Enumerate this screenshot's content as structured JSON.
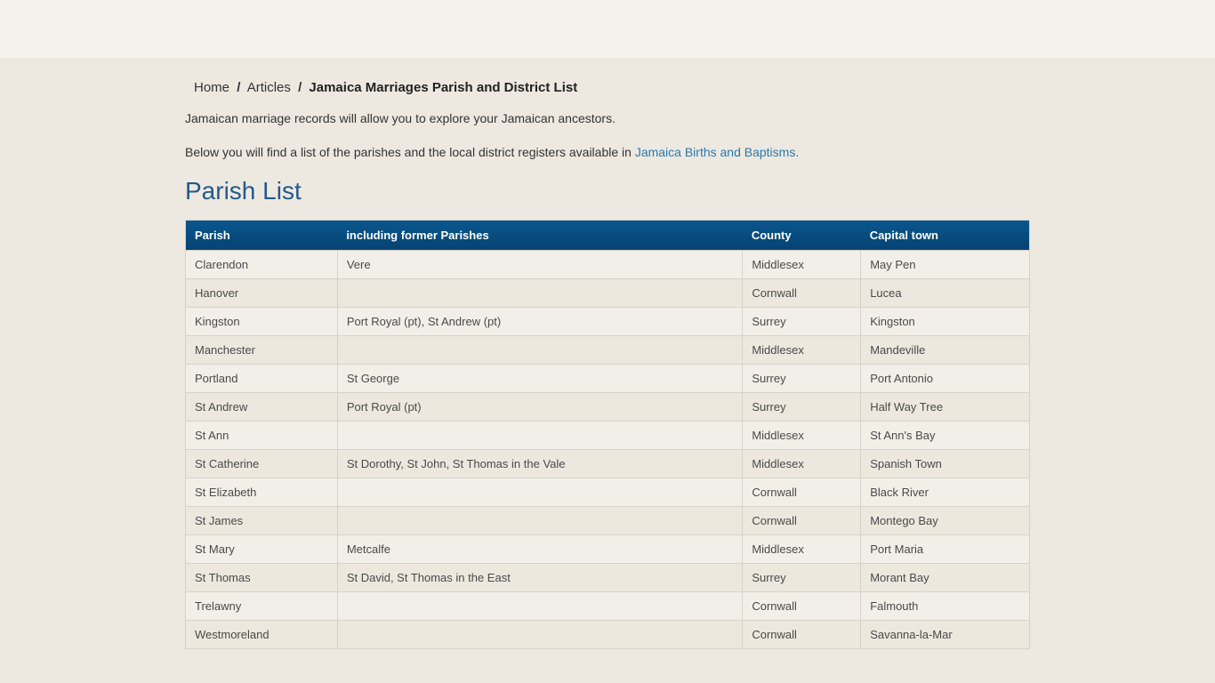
{
  "breadcrumb": {
    "home": "Home",
    "articles": "Articles",
    "current": "Jamaica Marriages Parish and District List"
  },
  "intro": {
    "p1": "Jamaican marriage records will allow you to explore your Jamaican ancestors.",
    "p2_prefix": "Below you will find a list of the parishes and the local district registers available in ",
    "p2_link": "Jamaica Births and Baptisms.",
    "p2_suffix": ""
  },
  "section_title": "Parish List",
  "table": {
    "columns": [
      "Parish",
      "including former Parishes",
      "County",
      "Capital town"
    ],
    "rows": [
      [
        "Clarendon",
        "Vere",
        "Middlesex",
        "May Pen"
      ],
      [
        "Hanover",
        "",
        "Cornwall",
        "Lucea"
      ],
      [
        "Kingston",
        "Port Royal (pt), St Andrew (pt)",
        "Surrey",
        "Kingston"
      ],
      [
        "Manchester",
        "",
        "Middlesex",
        "Mandeville"
      ],
      [
        "Portland",
        "St George",
        "Surrey",
        "Port Antonio"
      ],
      [
        "St Andrew",
        "Port Royal (pt)",
        "Surrey",
        "Half Way Tree"
      ],
      [
        "St Ann",
        "",
        "Middlesex",
        "St Ann's Bay"
      ],
      [
        "St Catherine",
        "St Dorothy, St John, St Thomas in the Vale",
        "Middlesex",
        "Spanish Town"
      ],
      [
        "St Elizabeth",
        "",
        "Cornwall",
        "Black River"
      ],
      [
        "St James",
        "",
        "Cornwall",
        "Montego Bay"
      ],
      [
        "St Mary",
        "Metcalfe",
        "Middlesex",
        "Port Maria"
      ],
      [
        "St Thomas",
        "St David, St Thomas in the East",
        "Surrey",
        "Morant Bay"
      ],
      [
        "Trelawny",
        "",
        "Cornwall",
        "Falmouth"
      ],
      [
        "Westmoreland",
        "",
        "Cornwall",
        "Savanna-la-Mar"
      ]
    ]
  },
  "colors": {
    "page_bg": "#ede9e0",
    "banner_bg": "#f4f2ec",
    "link": "#2a7ab0",
    "heading": "#24598e",
    "th_bg_top": "#0a578e",
    "th_bg_bottom": "#064272",
    "row_odd": "#f2efe8",
    "row_even": "#ece8de",
    "border": "#d6d2c8"
  }
}
